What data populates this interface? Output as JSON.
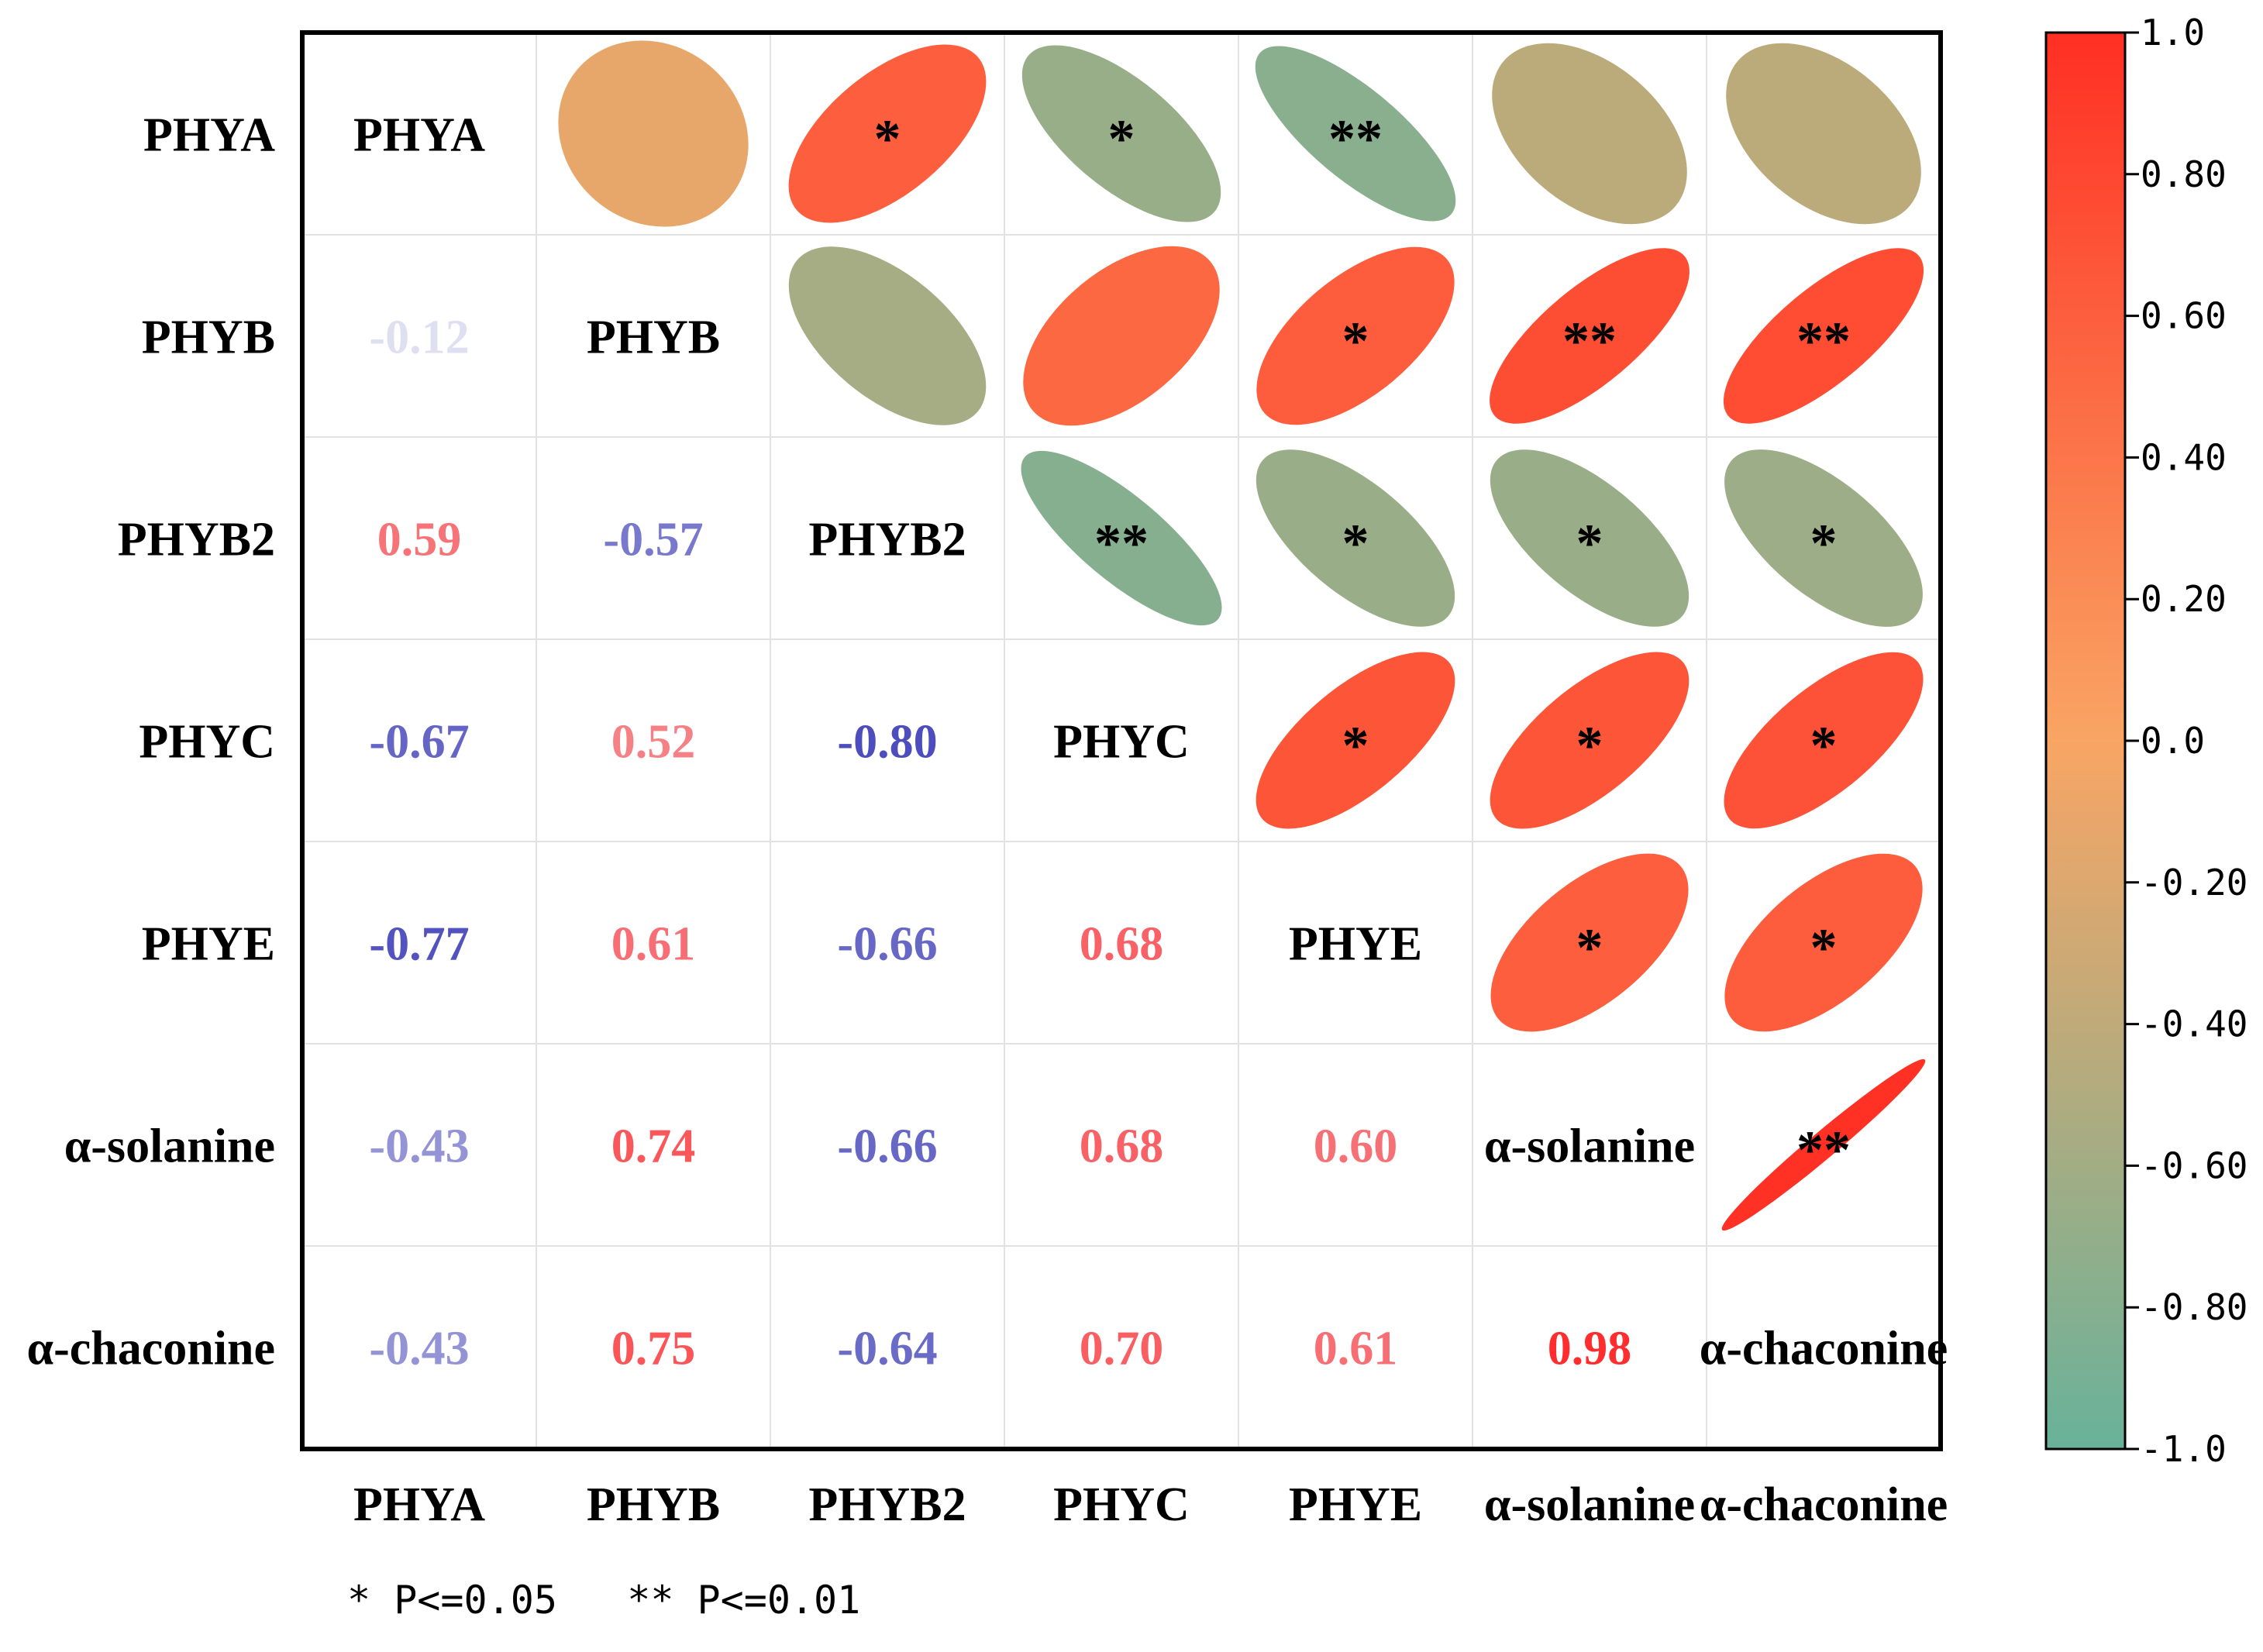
{
  "chart_data": {
    "type": "heatmap",
    "variables": [
      "PHYA",
      "PHYB",
      "PHYB2",
      "PHYC",
      "PHYE",
      "α-solanine",
      "α-chaconine"
    ],
    "matrix": [
      [
        1.0,
        -0.12,
        0.59,
        -0.67,
        -0.77,
        -0.43,
        -0.43
      ],
      [
        -0.12,
        1.0,
        -0.57,
        0.52,
        0.61,
        0.74,
        0.75
      ],
      [
        0.59,
        -0.57,
        1.0,
        -0.8,
        -0.66,
        -0.66,
        -0.64
      ],
      [
        -0.67,
        0.52,
        -0.8,
        1.0,
        0.68,
        0.68,
        0.7
      ],
      [
        -0.77,
        0.61,
        -0.66,
        0.68,
        1.0,
        0.6,
        0.61
      ],
      [
        -0.43,
        0.74,
        -0.66,
        0.68,
        0.6,
        1.0,
        0.98
      ],
      [
        -0.43,
        0.75,
        -0.64,
        0.7,
        0.61,
        0.98,
        1.0
      ]
    ],
    "value_labels": [
      [
        "",
        "",
        "",
        "",
        "",
        "",
        ""
      ],
      [
        "-0.12",
        "",
        "",
        "",
        "",
        "",
        ""
      ],
      [
        "0.59",
        "-0.57",
        "",
        "",
        "",
        "",
        ""
      ],
      [
        "-0.67",
        "0.52",
        "-0.80",
        "",
        "",
        "",
        ""
      ],
      [
        "-0.77",
        "0.61",
        "-0.66",
        "0.68",
        "",
        "",
        ""
      ],
      [
        "-0.43",
        "0.74",
        "-0.66",
        "0.68",
        "0.60",
        "",
        ""
      ],
      [
        "-0.43",
        "0.75",
        "-0.64",
        "0.70",
        "0.61",
        "0.98",
        ""
      ]
    ],
    "significance": [
      [
        "",
        "",
        "*",
        "*",
        "**",
        "",
        ""
      ],
      [
        "",
        "",
        "",
        "",
        "*",
        "**",
        "**"
      ],
      [
        "",
        "",
        "",
        "**",
        "*",
        "*",
        "*"
      ],
      [
        "",
        "",
        "",
        "",
        "*",
        "*",
        "*"
      ],
      [
        "",
        "",
        "",
        "",
        "",
        "*",
        "*"
      ],
      [
        "",
        "",
        "",
        "",
        "",
        "",
        "**"
      ],
      [
        "",
        "",
        "",
        "",
        "",
        "",
        ""
      ]
    ],
    "colorbar": {
      "range": [
        -1.0,
        1.0
      ],
      "ticks": [
        "1.0",
        "0.80",
        "0.60",
        "0.40",
        "0.20",
        "0.0",
        "-0.20",
        "-0.40",
        "-0.60",
        "-0.80",
        "-1.0"
      ],
      "colors": [
        "#68b29a",
        "#f9a564",
        "#ff2f23"
      ]
    },
    "label_colors": {
      "negative": "#2b2bb0",
      "positive": "#ff2a2a"
    },
    "legend": "* P<=0.05   ** P<=0.01"
  }
}
